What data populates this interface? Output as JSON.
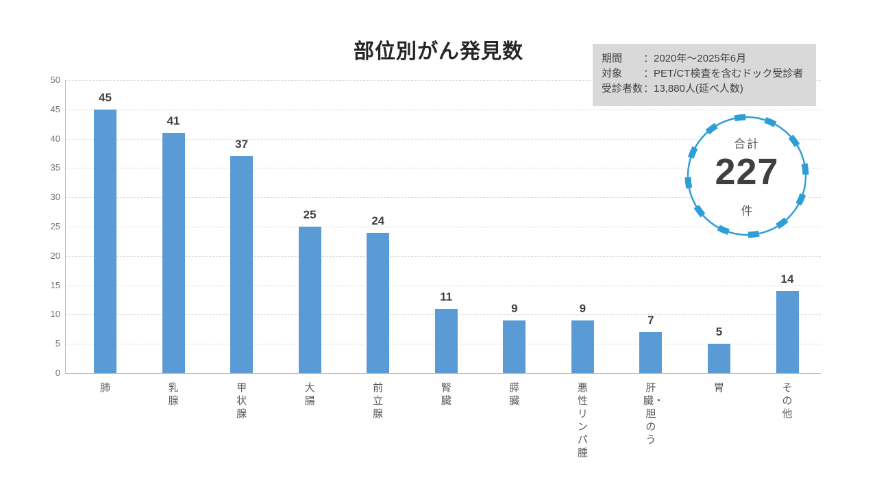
{
  "page": {
    "background": "#ffffff"
  },
  "chart_data": {
    "type": "bar",
    "title": "部位別がん発見数",
    "categories": [
      "肺",
      "乳腺",
      "甲状腺",
      "大腸",
      "前立腺",
      "腎臓",
      "膵臓",
      "悪性リンパ腫",
      "肝臓・胆のう",
      "胃",
      "その他"
    ],
    "values": [
      45,
      41,
      37,
      25,
      24,
      11,
      9,
      9,
      7,
      5,
      14
    ],
    "xlabel": "",
    "ylabel": "",
    "ylim": [
      0,
      50
    ],
    "ytick_step": 5,
    "yticks": [
      0,
      5,
      10,
      15,
      20,
      25,
      30,
      35,
      40,
      45,
      50
    ],
    "grid": "horizontal-dashed",
    "legend": "none",
    "bar_color": "#5b9bd5",
    "value_labels_shown": true
  },
  "info_box": {
    "background": "#d9d9d9",
    "lines": [
      {
        "label": "期間",
        "sep": "：",
        "value": "2020年～2025年6月"
      },
      {
        "label": "対象",
        "sep": "：",
        "value": "PET/CT検査を含むドック受診者"
      },
      {
        "label": "受診者数",
        "sep": "：",
        "value": "13,880人(延べ人数)"
      }
    ]
  },
  "total_badge": {
    "label": "合計",
    "value": "227",
    "unit": "件",
    "ring_color": "#2e9fd6"
  },
  "colors": {
    "bar": "#5b9bd5",
    "grid": "#d9d9d9",
    "axis": "#bfbfbf",
    "title_text": "#262626",
    "tick_text": "#737373",
    "category_text": "#595959",
    "value_text": "#404040"
  }
}
